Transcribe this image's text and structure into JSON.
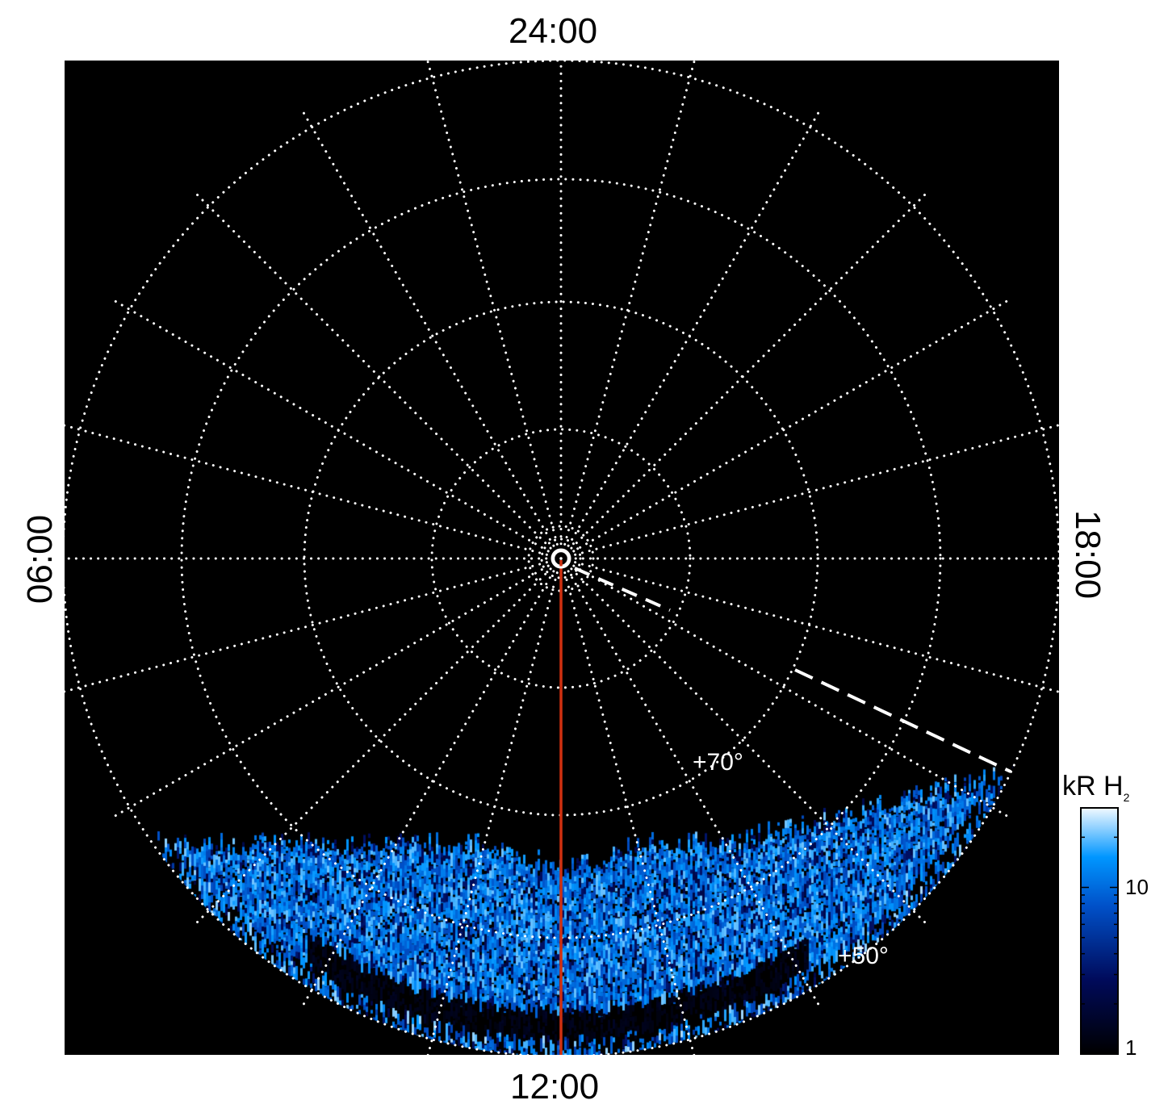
{
  "chart_data": {
    "type": "heatmap",
    "projection": "polar",
    "local_time_labels": {
      "top": "24:00",
      "bottom": "12:00",
      "left": "06:00",
      "right": "18:00"
    },
    "latitude_labels": [
      "+70°",
      "+50°"
    ],
    "latitude_rings": [
      80,
      70,
      60,
      50
    ],
    "meridian_spacing_hours": 1,
    "grid": true,
    "colorbar": {
      "label": "kR H",
      "label_subscript": "2",
      "scale": "log",
      "range": [
        1,
        30
      ],
      "ticks": [
        "1",
        "10"
      ],
      "colormap": [
        "#000000",
        "#000a5a",
        "#0050c8",
        "#0096ff",
        "#eaf6ff"
      ]
    },
    "colors": {
      "background": "#000000",
      "grid": "#ffffff",
      "meridian_line": "#d03010"
    }
  }
}
